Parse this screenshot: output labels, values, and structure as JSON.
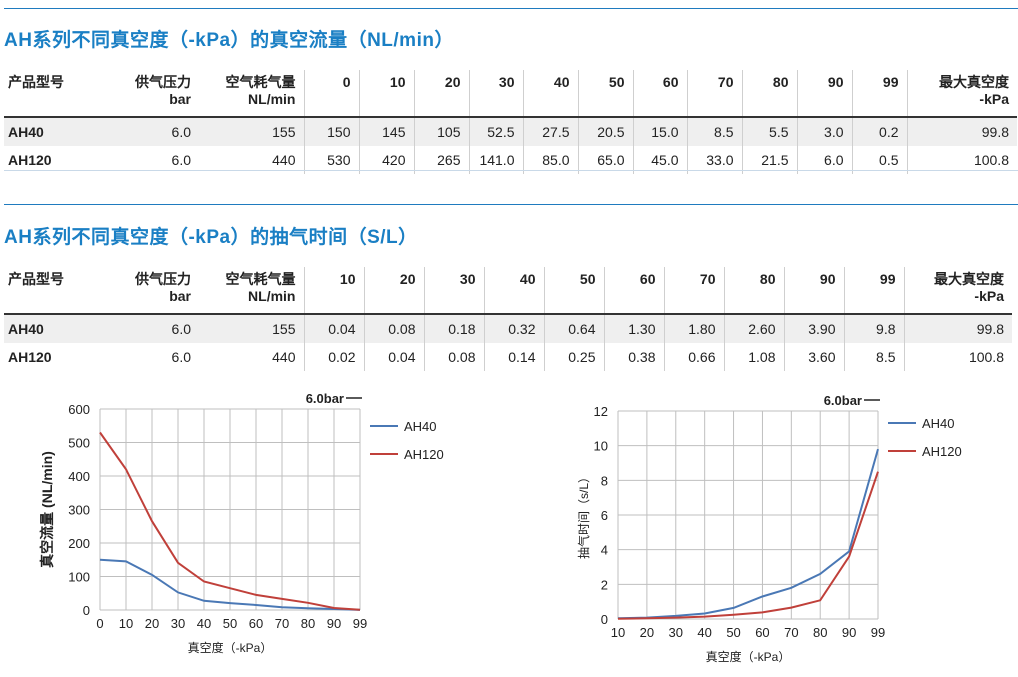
{
  "flow_section": {
    "title": "AH系列不同真空度（-kPa）的真空流量（NL/min）",
    "headers": [
      {
        "l1": "产品型号",
        "l2": ""
      },
      {
        "l1": "供气压力",
        "l2": "bar"
      },
      {
        "l1": "空气耗气量",
        "l2": "NL/min"
      },
      {
        "l1": "0",
        "l2": ""
      },
      {
        "l1": "10",
        "l2": ""
      },
      {
        "l1": "20",
        "l2": ""
      },
      {
        "l1": "30",
        "l2": ""
      },
      {
        "l1": "40",
        "l2": ""
      },
      {
        "l1": "50",
        "l2": ""
      },
      {
        "l1": "60",
        "l2": ""
      },
      {
        "l1": "70",
        "l2": ""
      },
      {
        "l1": "80",
        "l2": ""
      },
      {
        "l1": "90",
        "l2": ""
      },
      {
        "l1": "99",
        "l2": ""
      },
      {
        "l1": "最大真空度",
        "l2": "-kPa"
      }
    ],
    "rows": [
      [
        "AH40",
        "6.0",
        "155",
        "150",
        "145",
        "105",
        "52.5",
        "27.5",
        "20.5",
        "15.0",
        "8.5",
        "5.5",
        "3.0",
        "0.2",
        "99.8"
      ],
      [
        "AH120",
        "6.0",
        "440",
        "530",
        "420",
        "265",
        "141.0",
        "85.0",
        "65.0",
        "45.0",
        "33.0",
        "21.5",
        "6.0",
        "0.5",
        "100.8"
      ]
    ]
  },
  "time_section": {
    "title": "AH系列不同真空度（-kPa）的抽气时间（S/L）",
    "headers": [
      {
        "l1": "产品型号",
        "l2": ""
      },
      {
        "l1": "供气压力",
        "l2": "bar"
      },
      {
        "l1": "空气耗气量",
        "l2": "NL/min"
      },
      {
        "l1": "10",
        "l2": ""
      },
      {
        "l1": "20",
        "l2": ""
      },
      {
        "l1": "30",
        "l2": ""
      },
      {
        "l1": "40",
        "l2": ""
      },
      {
        "l1": "50",
        "l2": ""
      },
      {
        "l1": "60",
        "l2": ""
      },
      {
        "l1": "70",
        "l2": ""
      },
      {
        "l1": "80",
        "l2": ""
      },
      {
        "l1": "90",
        "l2": ""
      },
      {
        "l1": "99",
        "l2": ""
      },
      {
        "l1": "最大真空度",
        "l2": "-kPa"
      }
    ],
    "rows": [
      [
        "AH40",
        "6.0",
        "155",
        "0.04",
        "0.08",
        "0.18",
        "0.32",
        "0.64",
        "1.30",
        "1.80",
        "2.60",
        "3.90",
        "9.8",
        "99.8"
      ],
      [
        "AH120",
        "6.0",
        "440",
        "0.02",
        "0.04",
        "0.08",
        "0.14",
        "0.25",
        "0.38",
        "0.66",
        "1.08",
        "3.60",
        "8.5",
        "100.8"
      ]
    ]
  },
  "chart_data": [
    {
      "type": "line",
      "title": "",
      "annotation": "6.0bar",
      "xlabel": "真空度（-kPa）",
      "ylabel": "真空流量 (NL/min)",
      "categories": [
        "0",
        "10",
        "20",
        "30",
        "40",
        "50",
        "60",
        "70",
        "80",
        "90",
        "99"
      ],
      "yticks": [
        "0",
        "100",
        "200",
        "300",
        "400",
        "500",
        "600"
      ],
      "ylim": [
        0,
        600
      ],
      "grid": true,
      "legend": "right",
      "series": [
        {
          "name": "AH40",
          "color": "#4a78b5",
          "values": [
            150,
            145,
            105,
            52.5,
            27.5,
            20.5,
            15.0,
            8.5,
            5.5,
            3.0,
            0.2
          ]
        },
        {
          "name": "AH120",
          "color": "#c0403a",
          "values": [
            530,
            420,
            265,
            141.0,
            85.0,
            65.0,
            45.0,
            33.0,
            21.5,
            6.0,
            0.5
          ]
        }
      ]
    },
    {
      "type": "line",
      "title": "",
      "annotation": "6.0bar",
      "xlabel": "真空度（-kPa）",
      "ylabel": "抽气时间（s/L）",
      "categories": [
        "10",
        "20",
        "30",
        "40",
        "50",
        "60",
        "70",
        "80",
        "90",
        "99"
      ],
      "yticks": [
        "0",
        "2",
        "4",
        "6",
        "8",
        "10",
        "12"
      ],
      "ylim": [
        0,
        12
      ],
      "grid": true,
      "legend": "right",
      "series": [
        {
          "name": "AH40",
          "color": "#4a78b5",
          "values": [
            0.04,
            0.08,
            0.18,
            0.32,
            0.64,
            1.3,
            1.8,
            2.6,
            3.9,
            9.8
          ]
        },
        {
          "name": "AH120",
          "color": "#c0403a",
          "values": [
            0.02,
            0.04,
            0.08,
            0.14,
            0.25,
            0.38,
            0.66,
            1.08,
            3.6,
            8.5
          ]
        }
      ]
    }
  ]
}
